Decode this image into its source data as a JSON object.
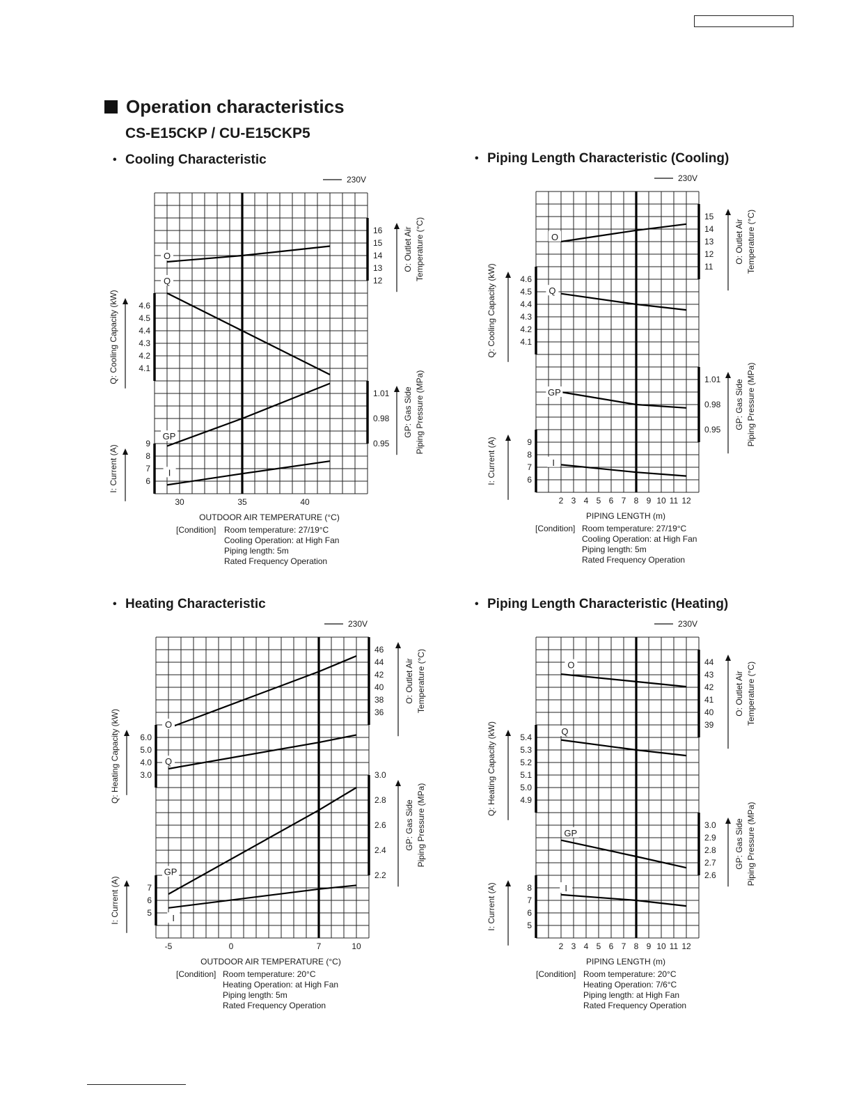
{
  "header": {
    "section_title": "Operation characteristics",
    "model": "CS-E15CKP / CU-E15CKP5"
  },
  "chart_data": [
    {
      "type": "line",
      "title": "Cooling Characteristic",
      "legend": "230V",
      "xlabel": "OUTDOOR AIR TEMPERATURE (°C)",
      "x_ticks": [
        "30",
        "35",
        "40"
      ],
      "reference_x": 35,
      "condition_label": "[Condition]",
      "conditions": [
        "Room temperature: 27/19°C",
        "Cooling Operation: at High Fan",
        "Piping length: 5m",
        "Rated Frequency Operation"
      ],
      "axes": {
        "O": {
          "title": [
            "O: Outlet Air",
            "Temperature (°C)"
          ],
          "ticks": [
            "16",
            "15",
            "14",
            "13",
            "12"
          ]
        },
        "Q": {
          "title": [
            "Q: Cooling Capacity (kW)"
          ],
          "ticks": [
            "4.6",
            "4.5",
            "4.4",
            "4.3",
            "4.2",
            "4.1"
          ]
        },
        "GP": {
          "title": [
            "GP: Gas Side",
            "Piping Pressure (MPa)"
          ],
          "ticks": [
            "1.01",
            "0.98",
            "0.95"
          ]
        },
        "I": {
          "title": [
            "I: Current (A)"
          ],
          "ticks": [
            "9",
            "8",
            "7",
            "6"
          ]
        }
      },
      "series": [
        {
          "name": "O",
          "x": [
            29,
            35,
            42
          ],
          "y": [
            13.5,
            14.0,
            14.75
          ]
        },
        {
          "name": "Q",
          "x": [
            29,
            35,
            42
          ],
          "y": [
            4.7,
            4.4,
            4.05
          ]
        },
        {
          "name": "GP",
          "x": [
            29,
            35,
            42
          ],
          "y": [
            0.947,
            0.98,
            1.022
          ]
        },
        {
          "name": "I",
          "x": [
            29,
            35,
            42
          ],
          "y": [
            5.7,
            6.6,
            7.6
          ]
        }
      ]
    },
    {
      "type": "line",
      "title": "Piping Length Characteristic (Cooling)",
      "legend": "230V",
      "xlabel": "PIPING LENGTH (m)",
      "x_ticks": [
        "2",
        "3",
        "4",
        "5",
        "6",
        "7",
        "8",
        "9",
        "10",
        "11",
        "12"
      ],
      "reference_x": 8,
      "condition_label": "[Condition]",
      "conditions": [
        "Room temperature: 27/19°C",
        "Cooling Operation: at High Fan",
        "Piping length: 5m",
        "Rated Frequency Operation"
      ],
      "axes": {
        "O": {
          "title": [
            "O: Outlet Air",
            "Temperature (°C)"
          ],
          "ticks": [
            "15",
            "14",
            "13",
            "12",
            "11"
          ]
        },
        "Q": {
          "title": [
            "Q: Cooling Capacity (kW)"
          ],
          "ticks": [
            "4.6",
            "4.5",
            "4.4",
            "4.3",
            "4.2",
            "4.1"
          ]
        },
        "GP": {
          "title": [
            "GP: Gas Side",
            "Piping Pressure (MPa)"
          ],
          "ticks": [
            "1.01",
            "0.98",
            "0.95"
          ]
        },
        "I": {
          "title": [
            "I: Current (A)"
          ],
          "ticks": [
            "9",
            "8",
            "7",
            "6"
          ]
        }
      },
      "series": [
        {
          "name": "O",
          "x": [
            2,
            8,
            12
          ],
          "y": [
            13.0,
            13.9,
            14.4
          ]
        },
        {
          "name": "Q",
          "x": [
            2,
            8,
            12
          ],
          "y": [
            4.485,
            4.4,
            4.355
          ]
        },
        {
          "name": "GP",
          "x": [
            2,
            8,
            12
          ],
          "y": [
            0.995,
            0.98,
            0.976
          ]
        },
        {
          "name": "I",
          "x": [
            2,
            8,
            12
          ],
          "y": [
            7.2,
            6.6,
            6.3
          ]
        }
      ]
    },
    {
      "type": "line",
      "title": "Heating Characteristic",
      "legend": "230V",
      "xlabel": "OUTDOOR AIR TEMPERATURE (°C)",
      "x_ticks": [
        "-5",
        "0",
        "7",
        "10"
      ],
      "reference_x": 7,
      "condition_label": "[Condition]",
      "conditions": [
        "Room temperature: 20°C",
        "Heating Operation: at High Fan",
        "Piping length: 5m",
        "Rated Frequency Operation"
      ],
      "axes": {
        "O": {
          "title": [
            "O: Outlet Air",
            "Temperature (°C)"
          ],
          "ticks": [
            "46",
            "44",
            "42",
            "40",
            "38",
            "36"
          ]
        },
        "Q": {
          "title": [
            "Q: Heating Capacity (kW)"
          ],
          "ticks": [
            "6.0",
            "5.0",
            "4.0",
            "3.0"
          ]
        },
        "GP": {
          "title": [
            "GP: Gas Side",
            "Piping Pressure (MPa)"
          ],
          "ticks": [
            "3.0",
            "2.8",
            "2.6",
            "2.4",
            "2.2"
          ]
        },
        "I": {
          "title": [
            "I: Current (A)"
          ],
          "ticks": [
            "7",
            "6",
            "5"
          ]
        }
      },
      "series": [
        {
          "name": "O",
          "x": [
            -5,
            7,
            10
          ],
          "y": [
            33.5,
            42.5,
            45.0
          ]
        },
        {
          "name": "Q",
          "x": [
            -5,
            7,
            10
          ],
          "y": [
            3.5,
            5.6,
            6.2
          ]
        },
        {
          "name": "GP",
          "x": [
            -5,
            7,
            10
          ],
          "y": [
            2.05,
            2.72,
            2.9
          ]
        },
        {
          "name": "I",
          "x": [
            -5,
            7,
            10
          ],
          "y": [
            5.4,
            6.9,
            7.2
          ]
        }
      ]
    },
    {
      "type": "line",
      "title": "Piping Length Characteristic (Heating)",
      "legend": "230V",
      "xlabel": "PIPING LENGTH (m)",
      "x_ticks": [
        "2",
        "3",
        "4",
        "5",
        "6",
        "7",
        "8",
        "9",
        "10",
        "11",
        "12"
      ],
      "reference_x": 8,
      "condition_label": "[Condition]",
      "conditions": [
        "Room temperature: 20°C",
        "Heating Operation: 7/6°C",
        "Piping length: at High Fan",
        "Rated Frequency Operation"
      ],
      "axes": {
        "O": {
          "title": [
            "O: Outlet Air",
            "Temperature (°C)"
          ],
          "ticks": [
            "44",
            "43",
            "42",
            "41",
            "40",
            "39"
          ]
        },
        "Q": {
          "title": [
            "Q: Heating Capacity (kW)"
          ],
          "ticks": [
            "5.4",
            "5.3",
            "5.2",
            "5.1",
            "5.0",
            "4.9"
          ]
        },
        "GP": {
          "title": [
            "GP: Gas Side",
            "Piping Pressure (MPa)"
          ],
          "ticks": [
            "3.0",
            "2.9",
            "2.8",
            "2.7",
            "2.6"
          ]
        },
        "I": {
          "title": [
            "I: Current (A)"
          ],
          "ticks": [
            "8",
            "7",
            "6",
            "5"
          ]
        }
      },
      "series": [
        {
          "name": "O",
          "x": [
            2,
            8,
            12
          ],
          "y": [
            43.05,
            42.45,
            42.05
          ]
        },
        {
          "name": "Q",
          "x": [
            2,
            8,
            12
          ],
          "y": [
            5.38,
            5.3,
            5.255
          ]
        },
        {
          "name": "GP",
          "x": [
            2,
            8,
            12
          ],
          "y": [
            2.88,
            2.75,
            2.66
          ]
        },
        {
          "name": "I",
          "x": [
            2,
            8,
            12
          ],
          "y": [
            7.45,
            7.0,
            6.55
          ]
        }
      ]
    }
  ]
}
